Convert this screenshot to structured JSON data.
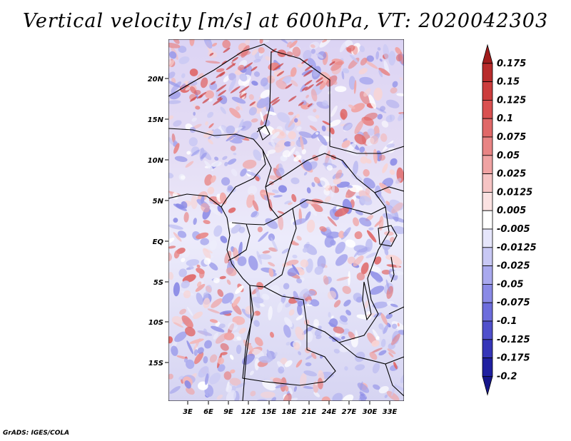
{
  "title": "Vertical velocity [m/s] at 600hPa, VT: 2020042303",
  "credit": "GrADS: IGES/COLA",
  "map": {
    "lat_labels": [
      "20N",
      "15N",
      "10N",
      "5N",
      "EQ",
      "5S",
      "10S",
      "15S"
    ],
    "lon_labels": [
      "3E",
      "6E",
      "9E",
      "12E",
      "15E",
      "18E",
      "21E",
      "24E",
      "27E",
      "30E",
      "33E"
    ]
  },
  "colorbar": {
    "labels": [
      "0.175",
      "0.15",
      "0.125",
      "0.1",
      "0.075",
      "0.05",
      "0.025",
      "0.0125",
      "0.005",
      "-0.005",
      "-0.0125",
      "-0.025",
      "-0.05",
      "-0.075",
      "-0.1",
      "-0.125",
      "-0.175",
      "-0.2"
    ],
    "colors": [
      "#a01c1c",
      "#b82b2b",
      "#cc3d3d",
      "#d95050",
      "#e06868",
      "#e88484",
      "#f0a3a3",
      "#f6c4c4",
      "#fbe2e2",
      "#ffffff",
      "#e6e6fb",
      "#c8c8f4",
      "#a9a9ee",
      "#8a8ae6",
      "#6d6ddc",
      "#5050cc",
      "#3535b8",
      "#2020a0",
      "#16168a"
    ]
  }
}
